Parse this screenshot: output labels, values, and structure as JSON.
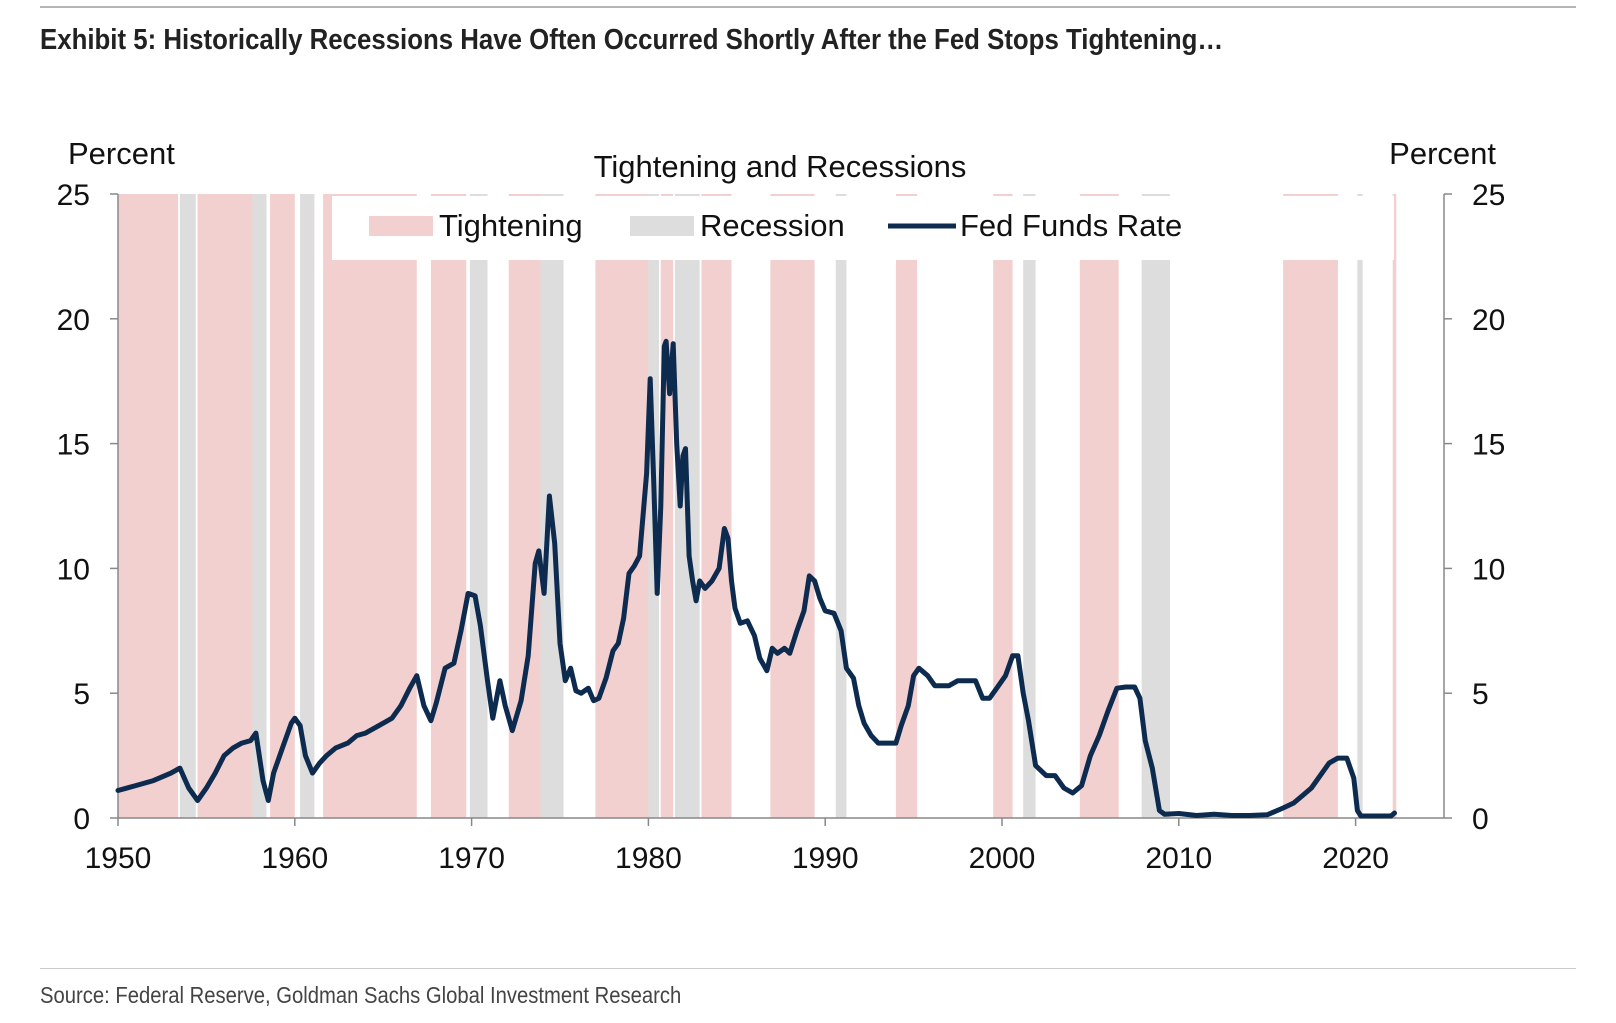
{
  "header": {
    "title": "Exhibit 5: Historically Recessions Have Often Occurred Shortly After the Fed Stops Tightening…"
  },
  "footer": {
    "source": "Source: Federal Reserve, Goldman Sachs Global Investment Research"
  },
  "chart_data": {
    "type": "line",
    "title": "Tightening and Recessions",
    "ylabel_left": "Percent",
    "ylabel_right": "Percent",
    "xlim": [
      1950,
      2025
    ],
    "ylim": [
      0,
      25
    ],
    "x_ticks": [
      1950,
      1960,
      1970,
      1980,
      1990,
      2000,
      2010,
      2020
    ],
    "y_ticks": [
      0,
      5,
      10,
      15,
      20,
      25
    ],
    "grid": false,
    "legend": {
      "placement": "top-center",
      "entries": [
        "Tightening",
        "Recession",
        "Fed Funds Rate"
      ]
    },
    "colors": {
      "tightening": "#f2d0d0",
      "recession": "#dddddd",
      "line": "#0d2b4f",
      "axis": "#888888"
    },
    "tightening_periods": [
      [
        1950.0,
        1953.4
      ],
      [
        1954.5,
        1957.8
      ],
      [
        1958.6,
        1960.0
      ],
      [
        1960.7,
        1961.1
      ],
      [
        1961.6,
        1966.9
      ],
      [
        1967.7,
        1969.7
      ],
      [
        1972.1,
        1973.9
      ],
      [
        1977.0,
        1980.6
      ],
      [
        1980.7,
        1981.4
      ],
      [
        1983.0,
        1984.7
      ],
      [
        1986.9,
        1989.4
      ],
      [
        1994.0,
        1995.2
      ],
      [
        1999.5,
        2000.6
      ],
      [
        2004.4,
        2006.6
      ],
      [
        2015.9,
        2019.0
      ],
      [
        2022.1,
        2022.3
      ]
    ],
    "recession_periods": [
      [
        1953.5,
        1954.4
      ],
      [
        1957.6,
        1958.4
      ],
      [
        1960.3,
        1961.1
      ],
      [
        1969.9,
        1970.9
      ],
      [
        1973.9,
        1975.2
      ],
      [
        1980.0,
        1980.6
      ],
      [
        1981.5,
        1982.9
      ],
      [
        1990.6,
        1991.2
      ],
      [
        2001.2,
        2001.9
      ],
      [
        2007.9,
        2009.5
      ],
      [
        2020.1,
        2020.4
      ]
    ],
    "series": [
      {
        "name": "Fed Funds Rate",
        "x": [
          1950.0,
          1951.0,
          1952.0,
          1953.0,
          1953.5,
          1954.0,
          1954.5,
          1955.0,
          1955.5,
          1956.0,
          1956.5,
          1957.0,
          1957.5,
          1957.8,
          1958.2,
          1958.5,
          1958.8,
          1959.3,
          1959.8,
          1960.0,
          1960.3,
          1960.6,
          1961.0,
          1961.4,
          1961.8,
          1962.3,
          1963.0,
          1963.5,
          1964.0,
          1965.0,
          1965.5,
          1966.0,
          1966.5,
          1966.9,
          1967.3,
          1967.7,
          1968.0,
          1968.5,
          1969.0,
          1969.4,
          1969.8,
          1970.2,
          1970.5,
          1970.9,
          1971.2,
          1971.6,
          1971.9,
          1972.3,
          1972.8,
          1973.2,
          1973.6,
          1973.8,
          1974.1,
          1974.4,
          1974.7,
          1975.0,
          1975.3,
          1975.6,
          1975.9,
          1976.2,
          1976.6,
          1976.9,
          1977.2,
          1977.6,
          1978.0,
          1978.3,
          1978.6,
          1978.9,
          1979.2,
          1979.5,
          1979.9,
          1980.1,
          1980.3,
          1980.5,
          1980.7,
          1980.9,
          1981.0,
          1981.2,
          1981.4,
          1981.6,
          1981.8,
          1981.95,
          1982.1,
          1982.3,
          1982.5,
          1982.7,
          1982.9,
          1983.2,
          1983.6,
          1984.0,
          1984.3,
          1984.5,
          1984.7,
          1984.9,
          1985.2,
          1985.6,
          1986.0,
          1986.3,
          1986.7,
          1987.0,
          1987.3,
          1987.7,
          1988.0,
          1988.4,
          1988.8,
          1989.1,
          1989.4,
          1989.7,
          1990.0,
          1990.5,
          1990.9,
          1991.2,
          1991.6,
          1991.9,
          1992.2,
          1992.6,
          1993.0,
          1993.5,
          1994.0,
          1994.3,
          1994.7,
          1995.0,
          1995.3,
          1995.8,
          1996.2,
          1996.6,
          1997.0,
          1997.5,
          1998.0,
          1998.5,
          1998.9,
          1999.3,
          1999.8,
          2000.2,
          2000.6,
          2000.9,
          2001.2,
          2001.5,
          2001.9,
          2002.5,
          2003.0,
          2003.5,
          2004.0,
          2004.5,
          2005.0,
          2005.5,
          2006.0,
          2006.5,
          2007.0,
          2007.5,
          2007.8,
          2008.1,
          2008.5,
          2008.9,
          2009.2,
          2010.0,
          2011.0,
          2012.0,
          2013.0,
          2014.0,
          2015.0,
          2015.9,
          2016.5,
          2017.0,
          2017.5,
          2018.0,
          2018.5,
          2019.0,
          2019.5,
          2019.9,
          2020.1,
          2020.3,
          2021.0,
          2022.0,
          2022.2
        ],
        "values": [
          1.1,
          1.3,
          1.5,
          1.8,
          2.0,
          1.2,
          0.7,
          1.2,
          1.8,
          2.5,
          2.8,
          3.0,
          3.1,
          3.4,
          1.5,
          0.7,
          1.8,
          2.8,
          3.8,
          4.0,
          3.7,
          2.5,
          1.8,
          2.2,
          2.5,
          2.8,
          3.0,
          3.3,
          3.4,
          3.8,
          4.0,
          4.5,
          5.2,
          5.7,
          4.5,
          3.9,
          4.6,
          6.0,
          6.2,
          7.5,
          9.0,
          8.9,
          7.7,
          5.5,
          4.0,
          5.5,
          4.5,
          3.5,
          4.7,
          6.5,
          10.2,
          10.7,
          9.0,
          12.9,
          11.0,
          7.0,
          5.5,
          6.0,
          5.1,
          5.0,
          5.2,
          4.7,
          4.8,
          5.6,
          6.7,
          7.0,
          8.0,
          9.8,
          10.1,
          10.5,
          13.8,
          17.6,
          13.5,
          9.0,
          12.5,
          18.9,
          19.1,
          17.0,
          19.0,
          15.0,
          12.5,
          14.5,
          14.8,
          10.5,
          9.5,
          8.7,
          9.5,
          9.2,
          9.5,
          10.0,
          11.6,
          11.2,
          9.5,
          8.4,
          7.8,
          7.9,
          7.3,
          6.4,
          5.9,
          6.8,
          6.6,
          6.8,
          6.6,
          7.5,
          8.3,
          9.7,
          9.5,
          8.8,
          8.3,
          8.2,
          7.5,
          6.0,
          5.6,
          4.5,
          3.8,
          3.3,
          3.0,
          3.0,
          3.0,
          3.7,
          4.5,
          5.7,
          6.0,
          5.7,
          5.3,
          5.3,
          5.3,
          5.5,
          5.5,
          5.5,
          4.8,
          4.8,
          5.3,
          5.7,
          6.5,
          6.5,
          5.0,
          3.9,
          2.1,
          1.7,
          1.7,
          1.2,
          1.0,
          1.3,
          2.5,
          3.3,
          4.3,
          5.2,
          5.25,
          5.25,
          4.8,
          3.1,
          2.0,
          0.3,
          0.15,
          0.18,
          0.1,
          0.15,
          0.1,
          0.1,
          0.13,
          0.4,
          0.6,
          0.9,
          1.2,
          1.7,
          2.2,
          2.4,
          2.4,
          1.6,
          0.3,
          0.08,
          0.08,
          0.08,
          0.2
        ]
      }
    ]
  }
}
